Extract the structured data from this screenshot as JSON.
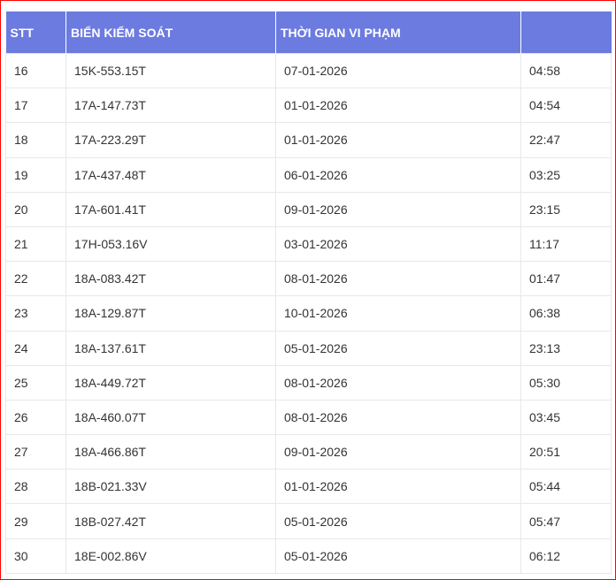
{
  "table": {
    "headers": [
      "STT",
      "BIỂN KIỂM SOÁT",
      "THỜI GIAN VI PHẠM",
      ""
    ],
    "rows": [
      [
        "16",
        "15K-553.15T",
        "07-01-2026",
        "04:58"
      ],
      [
        "17",
        "17A-147.73T",
        "01-01-2026",
        "04:54"
      ],
      [
        "18",
        "17A-223.29T",
        "01-01-2026",
        "22:47"
      ],
      [
        "19",
        "17A-437.48T",
        "06-01-2026",
        "03:25"
      ],
      [
        "20",
        "17A-601.41T",
        "09-01-2026",
        "23:15"
      ],
      [
        "21",
        "17H-053.16V",
        "03-01-2026",
        "11:17"
      ],
      [
        "22",
        "18A-083.42T",
        "08-01-2026",
        "01:47"
      ],
      [
        "23",
        "18A-129.87T",
        "10-01-2026",
        "06:38"
      ],
      [
        "24",
        "18A-137.61T",
        "05-01-2026",
        "23:13"
      ],
      [
        "25",
        "18A-449.72T",
        "08-01-2026",
        "05:30"
      ],
      [
        "26",
        "18A-460.07T",
        "08-01-2026",
        "03:45"
      ],
      [
        "27",
        "18A-466.86T",
        "09-01-2026",
        "20:51"
      ],
      [
        "28",
        "18B-021.33V",
        "01-01-2026",
        "05:44"
      ],
      [
        "29",
        "18B-027.42T",
        "05-01-2026",
        "05:47"
      ],
      [
        "30",
        "18E-002.86V",
        "05-01-2026",
        "06:12"
      ]
    ]
  },
  "colors": {
    "header_bg": "#6c7be0",
    "frame_border": "#ff0000"
  }
}
